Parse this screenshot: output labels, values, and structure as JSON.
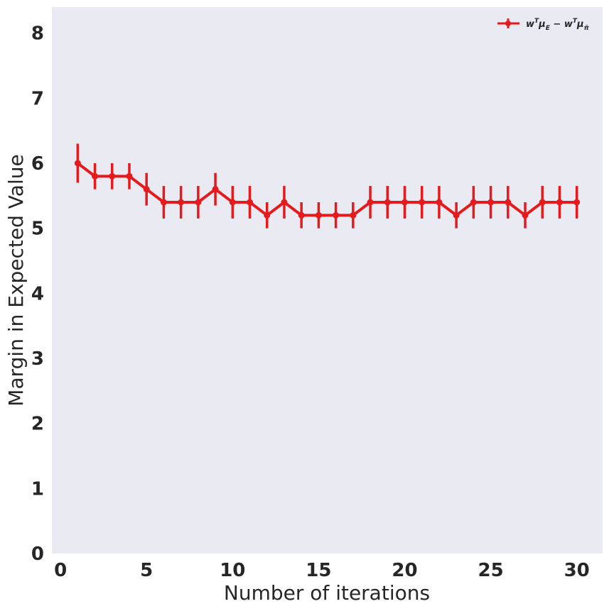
{
  "chart_data": {
    "type": "line",
    "x": [
      1,
      2,
      3,
      4,
      5,
      6,
      7,
      8,
      9,
      10,
      11,
      12,
      13,
      14,
      15,
      16,
      17,
      18,
      19,
      20,
      21,
      22,
      23,
      24,
      25,
      26,
      27,
      28,
      29,
      30
    ],
    "series": [
      {
        "name": "w^T μ_E − w^T μ_π̃",
        "values": [
          6.0,
          5.8,
          5.8,
          5.8,
          5.6,
          5.4,
          5.4,
          5.4,
          5.6,
          5.4,
          5.4,
          5.2,
          5.4,
          5.2,
          5.2,
          5.2,
          5.2,
          5.4,
          5.4,
          5.4,
          5.4,
          5.4,
          5.2,
          5.4,
          5.4,
          5.4,
          5.2,
          5.4,
          5.4,
          5.4
        ],
        "error_low": [
          5.7,
          5.6,
          5.6,
          5.6,
          5.35,
          5.15,
          5.15,
          5.15,
          5.35,
          5.15,
          5.15,
          5.0,
          5.15,
          5.0,
          5.0,
          5.0,
          5.0,
          5.15,
          5.15,
          5.15,
          5.15,
          5.15,
          5.0,
          5.15,
          5.15,
          5.15,
          5.0,
          5.15,
          5.15,
          5.15
        ],
        "error_high": [
          6.3,
          6.0,
          6.0,
          6.0,
          5.85,
          5.65,
          5.65,
          5.65,
          5.85,
          5.65,
          5.65,
          5.4,
          5.65,
          5.4,
          5.4,
          5.4,
          5.4,
          5.65,
          5.65,
          5.65,
          5.65,
          5.65,
          5.4,
          5.65,
          5.65,
          5.65,
          5.4,
          5.65,
          5.65,
          5.65
        ],
        "color": "#e41a1c"
      }
    ],
    "xlabel": "Number of iterations",
    "ylabel": "Margin in Expected Value",
    "xlim": [
      -0.5,
      31.5
    ],
    "ylim": [
      0,
      8.4
    ],
    "xticks": [
      "0",
      "5",
      "10",
      "15",
      "20",
      "25",
      "30"
    ],
    "yticks": [
      "0",
      "1",
      "2",
      "3",
      "4",
      "5",
      "6",
      "7",
      "8"
    ],
    "grid": false,
    "legend_position": "top-right",
    "background": "#eaeaf2"
  }
}
